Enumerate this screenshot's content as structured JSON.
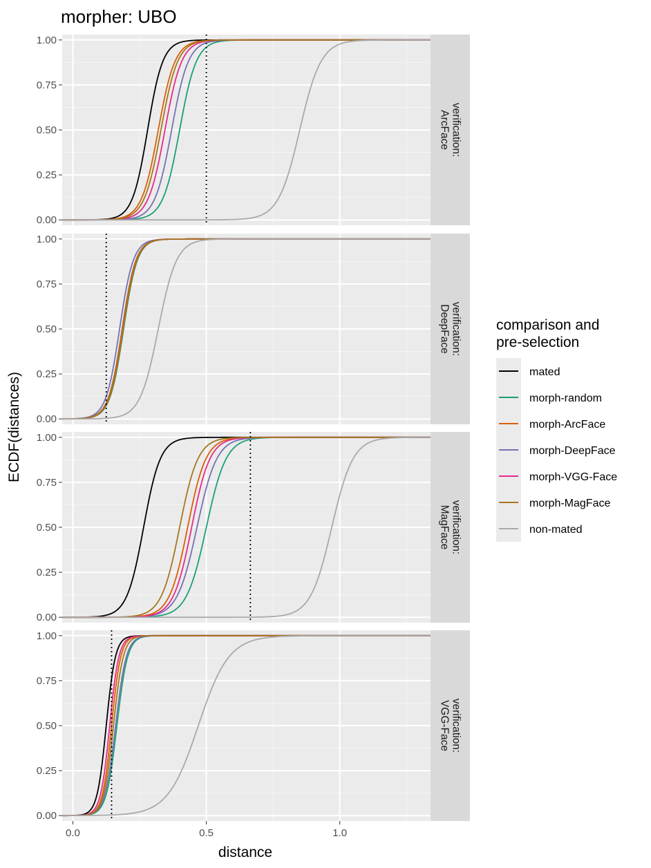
{
  "chart_data": {
    "type": "line",
    "title": "morpher: UBO",
    "xlabel": "distance",
    "ylabel": "ECDF(distances)",
    "xlim": [
      -0.04,
      1.34
    ],
    "ylim": [
      -0.03,
      1.03
    ],
    "x_ticks": [
      0.0,
      0.5,
      1.0
    ],
    "x_tick_labels": [
      "0.0",
      "0.5",
      "1.0"
    ],
    "y_ticks": [
      0,
      0.25,
      0.5,
      0.75,
      1.0
    ],
    "y_tick_labels": [
      "0.00",
      "0.25",
      "0.50",
      "0.75",
      "1.00"
    ],
    "legend": {
      "title_lines": [
        "comparison and",
        "pre-selection"
      ],
      "placement": "right"
    },
    "series_styles": [
      {
        "name": "mated",
        "color": "#000000"
      },
      {
        "name": "morph-random",
        "color": "#1B9E77"
      },
      {
        "name": "morph-ArcFace",
        "color": "#D95F02"
      },
      {
        "name": "morph-DeepFace",
        "color": "#7570B3"
      },
      {
        "name": "morph-VGG-Face",
        "color": "#E7298A"
      },
      {
        "name": "morph-MagFace",
        "color": "#A6761D"
      },
      {
        "name": "non-mated",
        "color": "#A9A9A9"
      }
    ],
    "panels": [
      {
        "strip": [
          "verification:",
          "ArcFace"
        ],
        "threshold": 0.5,
        "series": [
          {
            "name": "mated",
            "median": 0.28,
            "spread": 0.05
          },
          {
            "name": "morph-random",
            "median": 0.4,
            "spread": 0.055
          },
          {
            "name": "morph-ArcFace",
            "median": 0.32,
            "spread": 0.055
          },
          {
            "name": "morph-DeepFace",
            "median": 0.37,
            "spread": 0.055
          },
          {
            "name": "morph-VGG-Face",
            "median": 0.345,
            "spread": 0.055
          },
          {
            "name": "morph-MagFace",
            "median": 0.33,
            "spread": 0.055
          },
          {
            "name": "non-mated",
            "median": 0.85,
            "spread": 0.07
          }
        ]
      },
      {
        "strip": [
          "verification:",
          "DeepFace"
        ],
        "threshold": 0.125,
        "series": [
          {
            "name": "mated",
            "median": 0.185,
            "spread": 0.045
          },
          {
            "name": "morph-random",
            "median": 0.19,
            "spread": 0.045
          },
          {
            "name": "morph-ArcFace",
            "median": 0.188,
            "spread": 0.045
          },
          {
            "name": "morph-DeepFace",
            "median": 0.175,
            "spread": 0.045
          },
          {
            "name": "morph-VGG-Face",
            "median": 0.185,
            "spread": 0.045
          },
          {
            "name": "morph-MagFace",
            "median": 0.185,
            "spread": 0.045
          },
          {
            "name": "non-mated",
            "median": 0.32,
            "spread": 0.06
          }
        ]
      },
      {
        "strip": [
          "verification:",
          "MagFace"
        ],
        "threshold": 0.665,
        "series": [
          {
            "name": "mated",
            "median": 0.265,
            "spread": 0.055
          },
          {
            "name": "morph-random",
            "median": 0.5,
            "spread": 0.065
          },
          {
            "name": "morph-ArcFace",
            "median": 0.43,
            "spread": 0.06
          },
          {
            "name": "morph-DeepFace",
            "median": 0.465,
            "spread": 0.065
          },
          {
            "name": "morph-VGG-Face",
            "median": 0.445,
            "spread": 0.06
          },
          {
            "name": "morph-MagFace",
            "median": 0.4,
            "spread": 0.06
          },
          {
            "name": "non-mated",
            "median": 0.97,
            "spread": 0.07
          }
        ]
      },
      {
        "strip": [
          "verification:",
          "VGG-Face"
        ],
        "threshold": 0.145,
        "series": [
          {
            "name": "mated",
            "median": 0.125,
            "spread": 0.03
          },
          {
            "name": "morph-random",
            "median": 0.165,
            "spread": 0.035
          },
          {
            "name": "morph-ArcFace",
            "median": 0.145,
            "spread": 0.03
          },
          {
            "name": "morph-DeepFace",
            "median": 0.16,
            "spread": 0.035
          },
          {
            "name": "morph-VGG-Face",
            "median": 0.138,
            "spread": 0.03
          },
          {
            "name": "morph-MagFace",
            "median": 0.152,
            "spread": 0.032
          },
          {
            "name": "non-mated",
            "median": 0.47,
            "spread": 0.1
          }
        ]
      }
    ]
  }
}
